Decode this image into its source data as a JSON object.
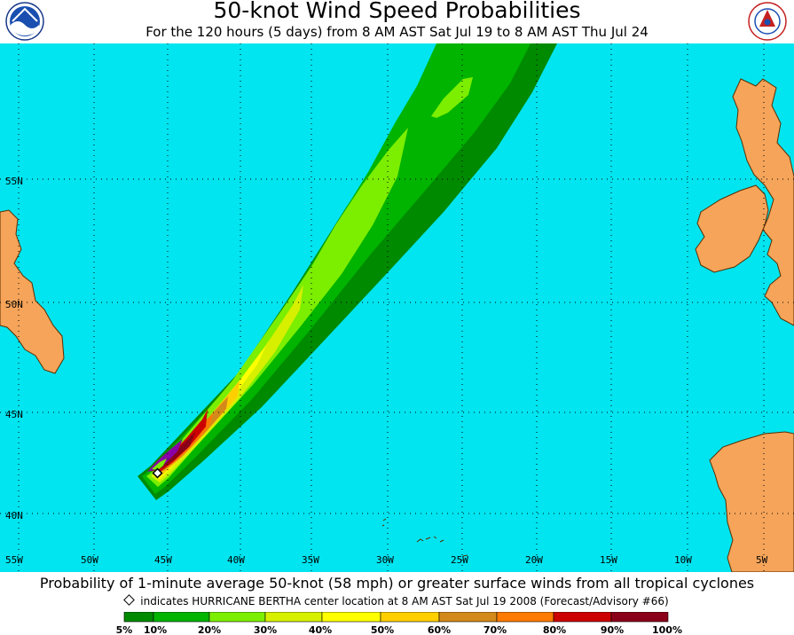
{
  "header": {
    "title": "50-knot Wind Speed Probabilities",
    "subtitle": "For the 120 hours (5 days) from 8 AM AST Sat Jul 19 to 8 AM AST Thu Jul 24"
  },
  "logos": {
    "left": "NOAA",
    "right": "NATIONAL WEATHER SERVICE"
  },
  "map": {
    "ocean_color": "#00e5f0",
    "land_color": "#f5a45a",
    "grid": true,
    "lat_labels": [
      "55N",
      "50N",
      "45N",
      "40N"
    ],
    "lon_labels": [
      "55W",
      "50W",
      "45W",
      "40W",
      "35W",
      "30W",
      "25W",
      "20W",
      "15W",
      "10W",
      "5W"
    ],
    "storm": {
      "name": "HURRICANE BERTHA",
      "lon": -46.0,
      "lat": 42.0,
      "marker": "open-diamond"
    }
  },
  "footer": {
    "description": "Probability of 1-minute average 50-knot (58 mph) or greater surface winds from all tropical cyclones",
    "marker_note": "indicates HURRICANE BERTHA center location at 8 AM AST Sat Jul 19 2008 (Forecast/Advisory #66)"
  },
  "legend": {
    "labels": [
      "5%",
      "10%",
      "20%",
      "30%",
      "40%",
      "50%",
      "60%",
      "70%",
      "80%",
      "90%",
      "100%"
    ],
    "colors": [
      "#008a00",
      "#00b400",
      "#7cee00",
      "#d6f000",
      "#ffff00",
      "#ffcf00",
      "#d48a1a",
      "#ff7a00",
      "#cc0000",
      "#8a0018",
      "#8a00a8"
    ]
  }
}
